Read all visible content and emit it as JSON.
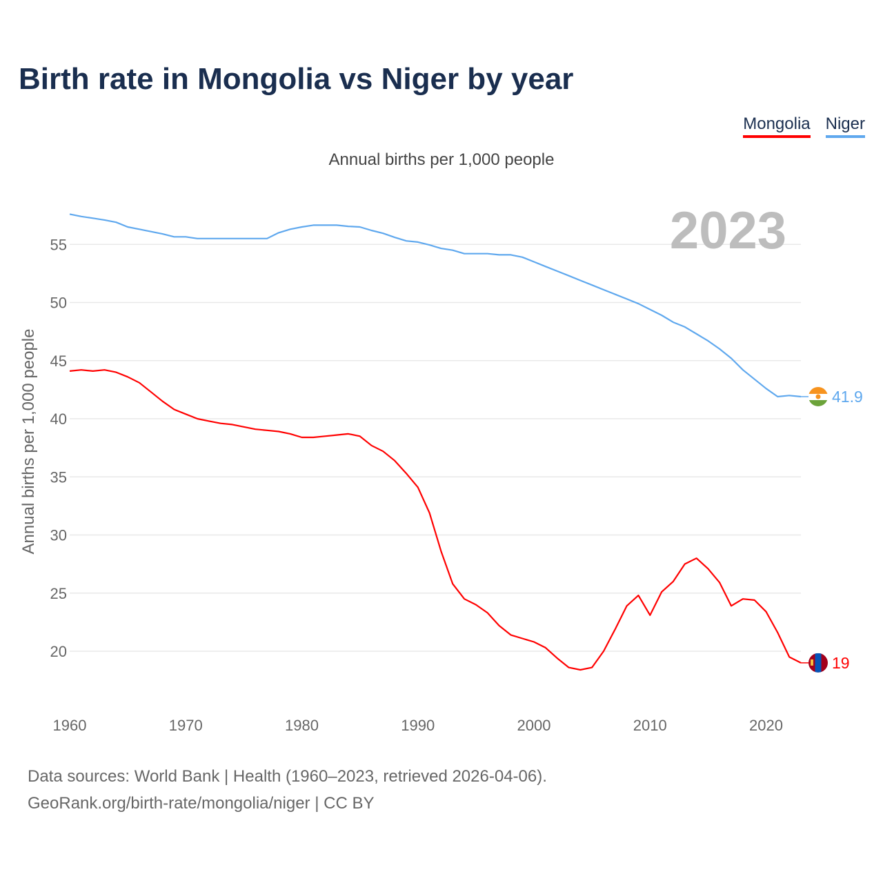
{
  "chart_data": {
    "type": "line",
    "title": "Birth rate in Mongolia vs Niger by year",
    "subtitle": "Annual births per 1,000 people",
    "ylabel": "Annual births per 1,000 people",
    "xlabel": "",
    "year_label": "2023",
    "xlim": [
      1960,
      2023
    ],
    "ylim": [
      16.3,
      58.5
    ],
    "xticks": [
      1960,
      1970,
      1980,
      1990,
      2000,
      2010,
      2020
    ],
    "yticks": [
      20,
      25,
      30,
      35,
      40,
      45,
      50,
      55
    ],
    "grid": true,
    "legend_position": "top-right",
    "x": [
      1960,
      1961,
      1962,
      1963,
      1964,
      1965,
      1966,
      1967,
      1968,
      1969,
      1970,
      1971,
      1972,
      1973,
      1974,
      1975,
      1976,
      1977,
      1978,
      1979,
      1980,
      1981,
      1982,
      1983,
      1984,
      1985,
      1986,
      1987,
      1988,
      1989,
      1990,
      1991,
      1992,
      1993,
      1994,
      1995,
      1996,
      1997,
      1998,
      1999,
      2000,
      2001,
      2002,
      2003,
      2004,
      2005,
      2006,
      2007,
      2008,
      2009,
      2010,
      2011,
      2012,
      2013,
      2014,
      2015,
      2016,
      2017,
      2018,
      2019,
      2020,
      2021,
      2022,
      2023
    ],
    "series": [
      {
        "name": "Mongolia",
        "color": "#ff0000",
        "end_label": "19",
        "flag": "mongolia-flag",
        "values": [
          44.1,
          44.2,
          44.1,
          44.2,
          44.0,
          43.6,
          43.1,
          42.3,
          41.5,
          40.8,
          40.4,
          40.0,
          39.8,
          39.6,
          39.5,
          39.3,
          39.1,
          39.0,
          38.9,
          38.7,
          38.4,
          38.4,
          38.5,
          38.6,
          38.7,
          38.5,
          37.7,
          37.2,
          36.4,
          35.3,
          34.1,
          31.9,
          28.6,
          25.8,
          24.5,
          24.0,
          23.3,
          22.2,
          21.4,
          21.1,
          20.8,
          20.3,
          19.4,
          18.6,
          18.4,
          18.6,
          20.0,
          21.9,
          23.9,
          24.8,
          23.1,
          25.1,
          26.0,
          27.5,
          28.0,
          27.1,
          25.9,
          23.9,
          24.5,
          24.4,
          23.4,
          21.6,
          19.5,
          19.0
        ]
      },
      {
        "name": "Niger",
        "color": "#5fa8ee",
        "end_label": "41.9",
        "flag": "niger-flag",
        "values": [
          57.6,
          57.4,
          57.25,
          57.1,
          56.9,
          56.5,
          56.3,
          56.1,
          55.9,
          55.65,
          55.65,
          55.5,
          55.5,
          55.5,
          55.5,
          55.5,
          55.5,
          55.5,
          56.0,
          56.3,
          56.5,
          56.65,
          56.65,
          56.65,
          56.55,
          56.5,
          56.2,
          55.95,
          55.6,
          55.3,
          55.2,
          54.95,
          54.65,
          54.5,
          54.2,
          54.2,
          54.2,
          54.1,
          54.1,
          53.9,
          53.5,
          53.1,
          52.7,
          52.3,
          51.9,
          51.5,
          51.1,
          50.7,
          50.3,
          49.9,
          49.4,
          48.9,
          48.3,
          47.9,
          47.3,
          46.7,
          46.0,
          45.2,
          44.2,
          43.4,
          42.6,
          41.9,
          42.0,
          41.9
        ]
      }
    ]
  },
  "footer": {
    "line1": "Data sources: World Bank | Health (1960–2023, retrieved 2026-04-06).",
    "line2": "GeoRank.org/birth-rate/mongolia/niger | CC BY"
  }
}
